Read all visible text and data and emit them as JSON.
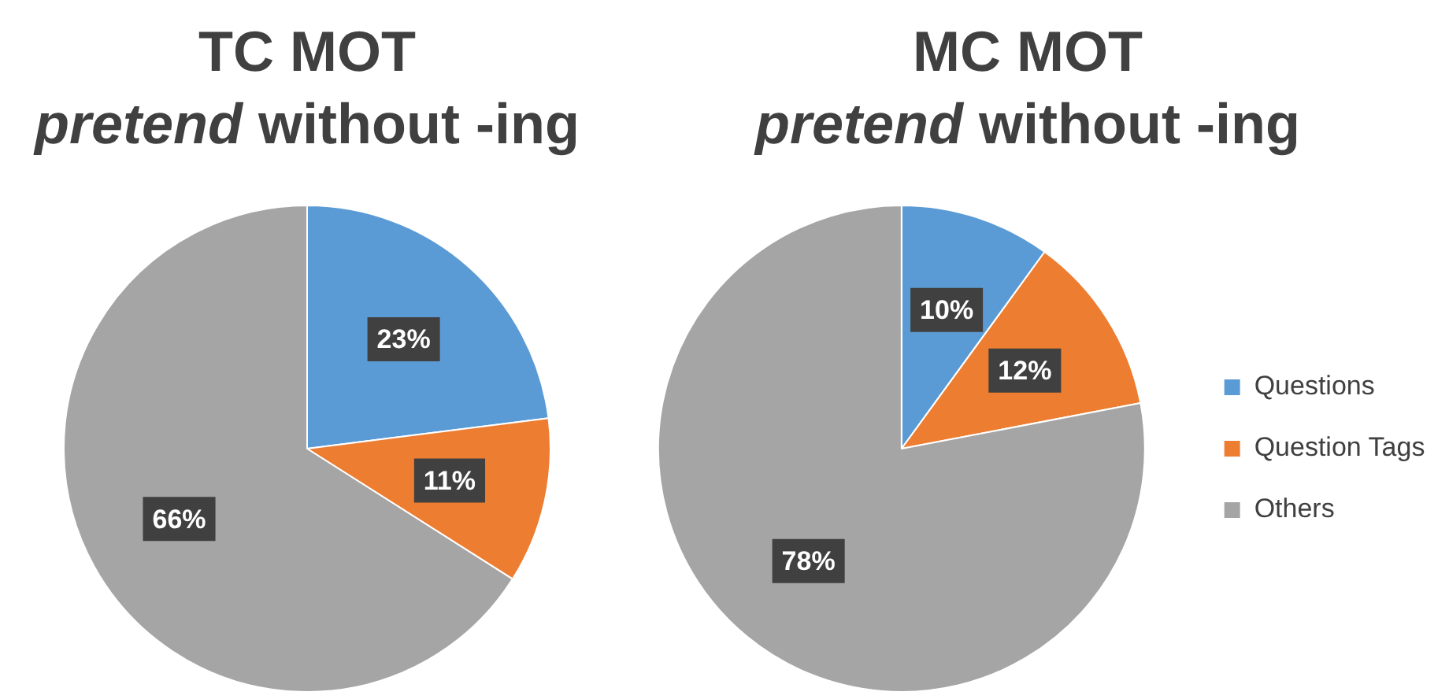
{
  "chart_data": [
    {
      "type": "pie",
      "title": "TC MOT\npretend without -ing",
      "categories": [
        null,
        null,
        null
      ],
      "values": [
        23,
        11,
        66
      ],
      "colors": [
        "#5b9bd5",
        "#ed7d31",
        "#a5a5a5"
      ],
      "value_labels": [
        "23%",
        "11%",
        "66%"
      ],
      "legend": false
    },
    {
      "type": "pie",
      "title": "MC MOT\npretend without -ing",
      "categories": [
        "Questions",
        "Question Tags",
        "Others"
      ],
      "values": [
        10,
        12,
        78
      ],
      "colors": [
        "#5b9bd5",
        "#ed7d31",
        "#a5a5a5"
      ],
      "value_labels": [
        "10%",
        "12%",
        "78%"
      ],
      "legend": "right"
    }
  ]
}
